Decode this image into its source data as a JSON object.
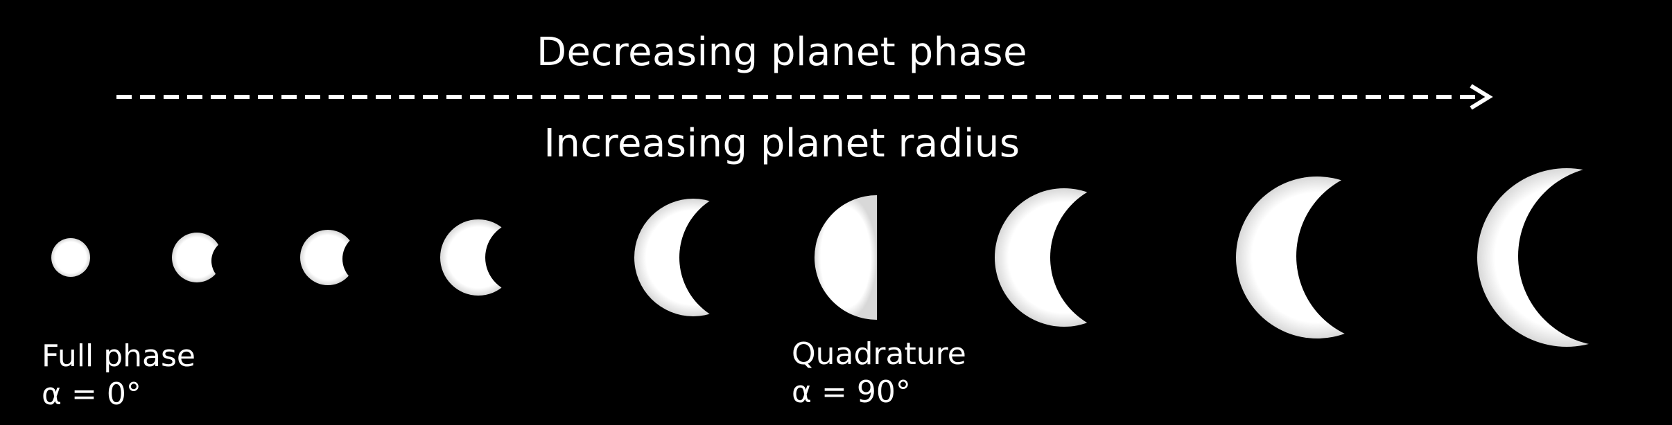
{
  "diagram": {
    "title_top": "Decreasing planet phase",
    "title_bottom": "Increasing planet radius",
    "arrow_direction": "left-to-right",
    "colors": {
      "background": "#000000",
      "planet": "#ffffff",
      "arrow": "#ffffff"
    }
  },
  "labels": {
    "full_phase": {
      "name": "Full phase",
      "angle": "α  = 0°"
    },
    "quadrature": {
      "name": "Quadrature",
      "angle": "α  = 90°"
    }
  },
  "phases_count": 9
}
